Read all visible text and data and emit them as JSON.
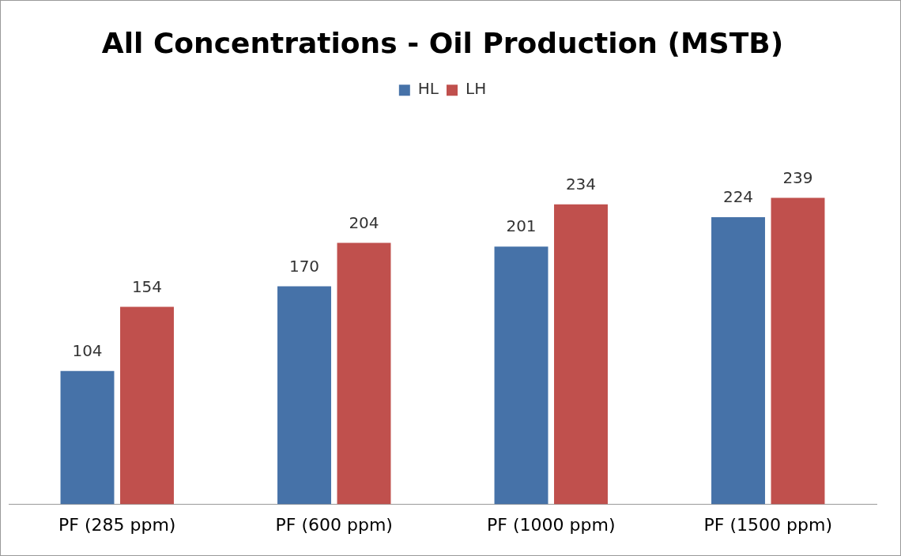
{
  "chart_data": {
    "type": "bar",
    "title": "All Concentrations - Oil Production (MSTB)",
    "categories": [
      "PF (285 ppm)",
      "PF (600 ppm)",
      "PF (1000 ppm)",
      "PF (1500 ppm)"
    ],
    "series": [
      {
        "name": "HL",
        "color": "#4672a8",
        "values": [
          104,
          170,
          201,
          224
        ]
      },
      {
        "name": "LH",
        "color": "#c0504d",
        "values": [
          154,
          204,
          234,
          239
        ]
      }
    ],
    "data_labels": true,
    "legend": "top",
    "grid": false
  }
}
